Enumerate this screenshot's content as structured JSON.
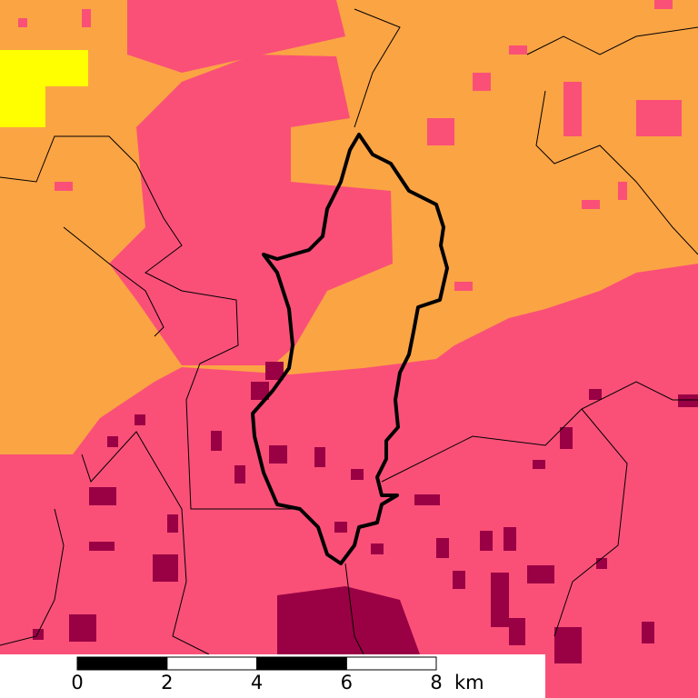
{
  "scale_bar": {
    "ticks": [
      0,
      2,
      4,
      6,
      8
    ],
    "unit": "km"
  }
}
